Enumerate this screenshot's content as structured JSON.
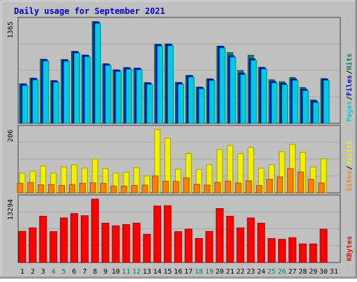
{
  "title": "Daily usage for September 2021",
  "colors": {
    "frame_bg": "#c0c0c0",
    "plot_bg": "#c0c0c0",
    "gridline": "#a8a8a8",
    "title": "#0000cc",
    "weekday": "#000000",
    "weekend": "#00805c",
    "hits": "#00805c",
    "files": "#0000ff",
    "pages": "#00ccdd",
    "visits": "#f0f000",
    "sites": "#ff8000",
    "kbytes": "#ff0000"
  },
  "chart_data": [
    {
      "type": "bar",
      "panel": "top",
      "ymax_label": "1365",
      "ylim": [
        0,
        1365
      ],
      "right_labels": [
        "Pages",
        "Files",
        "Hits"
      ],
      "x": [
        "1",
        "2",
        "3",
        "4",
        "5",
        "6",
        "7",
        "8",
        "9",
        "10",
        "11",
        "12",
        "13",
        "14",
        "15",
        "16",
        "17",
        "18",
        "19",
        "20",
        "21",
        "22",
        "23",
        "24",
        "25",
        "26",
        "27",
        "28",
        "29",
        "30",
        "31"
      ],
      "weekend": [
        false,
        false,
        false,
        true,
        true,
        false,
        false,
        false,
        false,
        false,
        true,
        true,
        false,
        false,
        false,
        false,
        false,
        true,
        true,
        false,
        false,
        false,
        false,
        false,
        true,
        true,
        false,
        false,
        false,
        false,
        false
      ],
      "series": [
        {
          "name": "Hits",
          "values": [
            530,
            606,
            859,
            573,
            856,
            965,
            916,
            1365,
            799,
            718,
            748,
            741,
            546,
            1060,
            1064,
            548,
            643,
            486,
            597,
            1036,
            950,
            708,
            913,
            751,
            585,
            558,
            614,
            480,
            314,
            599,
            0
          ]
        },
        {
          "name": "Files",
          "values": [
            525,
            600,
            854,
            568,
            850,
            960,
            911,
            1360,
            795,
            713,
            743,
            736,
            541,
            1055,
            1059,
            543,
            638,
            481,
            592,
            1031,
            906,
            672,
            864,
            746,
            561,
            536,
            594,
            456,
            298,
            594,
            0
          ]
        },
        {
          "name": "Pages",
          "values": [
            505,
            580,
            834,
            548,
            830,
            940,
            891,
            1340,
            775,
            693,
            723,
            716,
            521,
            1035,
            1039,
            523,
            618,
            461,
            572,
            1011,
            886,
            652,
            844,
            726,
            541,
            516,
            574,
            436,
            278,
            574,
            0
          ]
        }
      ]
    },
    {
      "type": "bar",
      "panel": "middle",
      "ymax_label": "206",
      "ylim": [
        0,
        206
      ],
      "right_labels": [
        "Sites",
        "Visits"
      ],
      "x": [
        "1",
        "2",
        "3",
        "4",
        "5",
        "6",
        "7",
        "8",
        "9",
        "10",
        "11",
        "12",
        "13",
        "14",
        "15",
        "16",
        "17",
        "18",
        "19",
        "20",
        "21",
        "22",
        "23",
        "24",
        "25",
        "26",
        "27",
        "28",
        "29",
        "30",
        "31"
      ],
      "series": [
        {
          "name": "Visits",
          "values": [
            64,
            70,
            87,
            65,
            84,
            91,
            81,
            110,
            79,
            64,
            67,
            82,
            55,
            206,
            178,
            77,
            128,
            76,
            92,
            141,
            154,
            128,
            148,
            80,
            91,
            134,
            158,
            132,
            84,
            111,
            0
          ]
        },
        {
          "name": "Sites",
          "values": [
            31,
            34,
            26,
            27,
            24,
            27,
            31,
            33,
            31,
            22,
            22,
            24,
            25,
            55,
            38,
            37,
            49,
            28,
            25,
            34,
            38,
            32,
            39,
            24,
            44,
            52,
            79,
            68,
            44,
            32,
            0
          ]
        }
      ]
    },
    {
      "type": "bar",
      "panel": "bottom",
      "ymax_label": "13294",
      "ylim": [
        0,
        13294
      ],
      "right_labels": [
        "KBytes"
      ],
      "x": [
        "1",
        "2",
        "3",
        "4",
        "5",
        "6",
        "7",
        "8",
        "9",
        "10",
        "11",
        "12",
        "13",
        "14",
        "15",
        "16",
        "17",
        "18",
        "19",
        "20",
        "21",
        "22",
        "23",
        "24",
        "25",
        "26",
        "27",
        "28",
        "29",
        "30",
        "31"
      ],
      "series": [
        {
          "name": "KBytes",
          "values": [
            6526,
            7267,
            9710,
            6473,
            9350,
            10266,
            9818,
            13294,
            8254,
            7694,
            7954,
            8254,
            5928,
            11845,
            11930,
            6473,
            6987,
            5045,
            6526,
            11318,
            9710,
            7267,
            9350,
            8254,
            5045,
            4865,
            5217,
            3900,
            3900,
            6987,
            0
          ]
        }
      ]
    }
  ]
}
